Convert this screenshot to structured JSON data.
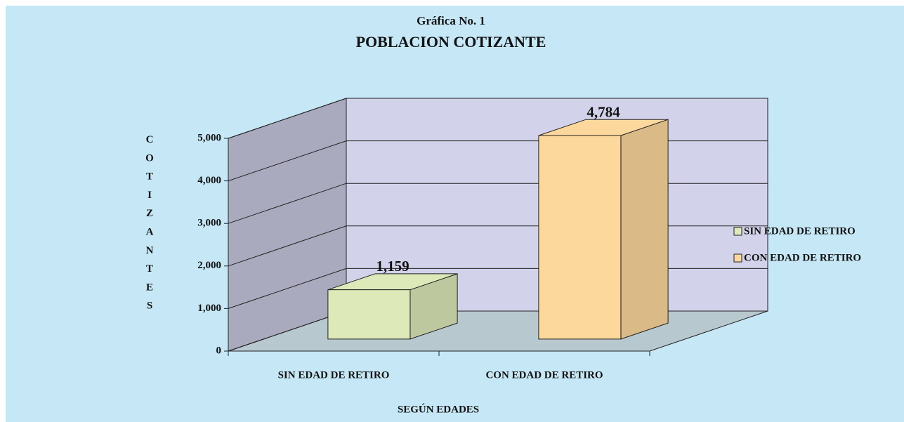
{
  "chart_data": {
    "type": "bar3d",
    "title": "Gráfica No. 1",
    "subtitle": "POBLACION COTIZANTE",
    "y_label": "COTIZANTES",
    "x_label": "SEGÚN EDADES",
    "categories": [
      "SIN EDAD DE RETIRO",
      "CON EDAD DE RETIRO"
    ],
    "values": [
      1159,
      4784
    ],
    "value_labels": [
      "1,159",
      "4,784"
    ],
    "colors": [
      "#dde9b8",
      "#fdd89c"
    ],
    "ylim": [
      0,
      5000
    ],
    "yticks": [
      0,
      {
        "value": 1000,
        "label": "1,000"
      },
      {
        "value": 2000,
        "label": "2,000"
      },
      {
        "value": 3000,
        "label": "3,000"
      },
      {
        "value": 4000,
        "label": "4,000"
      },
      {
        "value": 5000,
        "label": "5,000"
      }
    ],
    "grid": true,
    "legend": "right"
  }
}
